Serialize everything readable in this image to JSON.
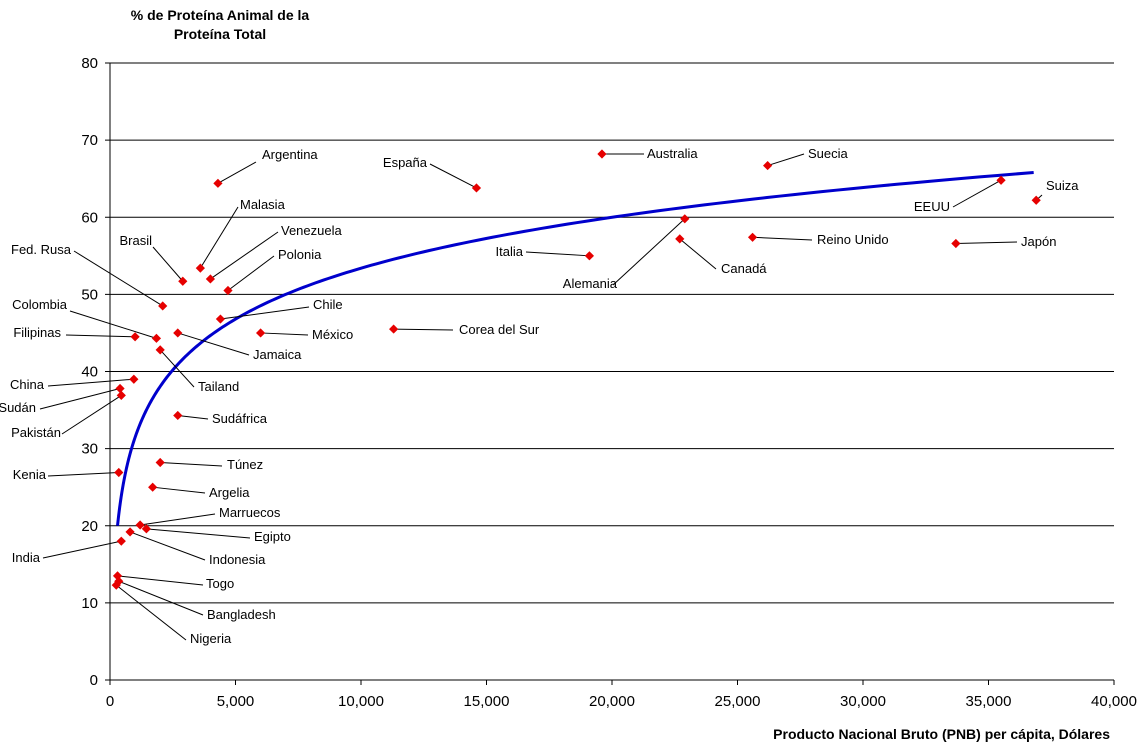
{
  "chart_data": {
    "type": "scatter",
    "title": "",
    "ylabel_lines": [
      "% de Proteína Animal de la",
      "Proteína Total"
    ],
    "xlabel": "Producto Nacional Bruto (PNB) per cápita, Dólares",
    "xlim": [
      0,
      40000
    ],
    "ylim": [
      0,
      80
    ],
    "x_ticks": [
      0,
      5000,
      10000,
      15000,
      20000,
      25000,
      30000,
      35000,
      40000
    ],
    "x_tick_labels": [
      "0",
      "5,000",
      "10,000",
      "15,000",
      "20,000",
      "25,000",
      "30,000",
      "35,000",
      "40,000"
    ],
    "y_ticks": [
      0,
      10,
      20,
      30,
      40,
      50,
      60,
      70,
      80
    ],
    "y_tick_labels": [
      "0",
      "10",
      "20",
      "30",
      "40",
      "50",
      "60",
      "70",
      "80"
    ],
    "grid": "horizontal",
    "colors": {
      "points": "#e60000",
      "trend": "#0000cc",
      "grid": "#000000"
    },
    "trendline": {
      "type": "logarithmic",
      "x_start": 300,
      "x_end": 36800,
      "y_start": 20,
      "y_end": 65.8
    },
    "points": [
      {
        "label": "Argentina",
        "x": 4300,
        "y": 64.4
      },
      {
        "label": "España",
        "x": 14600,
        "y": 63.8
      },
      {
        "label": "Australia",
        "x": 19600,
        "y": 68.2
      },
      {
        "label": "Suecia",
        "x": 26200,
        "y": 66.7
      },
      {
        "label": "EEUU",
        "x": 35500,
        "y": 64.8
      },
      {
        "label": "Suiza",
        "x": 36900,
        "y": 62.2
      },
      {
        "label": "Malasia",
        "x": 3600,
        "y": 53.4
      },
      {
        "label": "Venezuela",
        "x": 4000,
        "y": 52.0
      },
      {
        "label": "Brasil",
        "x": 2900,
        "y": 51.7
      },
      {
        "label": "Polonia",
        "x": 4700,
        "y": 50.5
      },
      {
        "label": "Fed. Rusa",
        "x": 2100,
        "y": 48.5
      },
      {
        "label": "Chile",
        "x": 4400,
        "y": 46.8
      },
      {
        "label": "Colombia",
        "x": 1850,
        "y": 44.3
      },
      {
        "label": "Jamaica",
        "x": 2700,
        "y": 45.0
      },
      {
        "label": "Filipinas",
        "x": 1000,
        "y": 44.5
      },
      {
        "label": "México",
        "x": 6000,
        "y": 45.0
      },
      {
        "label": "Corea del Sur",
        "x": 11300,
        "y": 45.5
      },
      {
        "label": "Tailand",
        "x": 2000,
        "y": 42.8
      },
      {
        "label": "Italia",
        "x": 19100,
        "y": 55.0
      },
      {
        "label": "Alemania",
        "x": 22900,
        "y": 59.8
      },
      {
        "label": "Canadá",
        "x": 22700,
        "y": 57.2
      },
      {
        "label": "Reino Unido",
        "x": 25600,
        "y": 57.4
      },
      {
        "label": "Japón",
        "x": 33700,
        "y": 56.6
      },
      {
        "label": "China",
        "x": 950,
        "y": 39.0
      },
      {
        "label": "Sudán",
        "x": 400,
        "y": 37.8
      },
      {
        "label": "Pakistán",
        "x": 450,
        "y": 36.9
      },
      {
        "label": "Sudáfrica",
        "x": 2700,
        "y": 34.3
      },
      {
        "label": "Túnez",
        "x": 2000,
        "y": 28.2
      },
      {
        "label": "Kenia",
        "x": 350,
        "y": 26.9
      },
      {
        "label": "Argelia",
        "x": 1700,
        "y": 25.0
      },
      {
        "label": "Marruecos",
        "x": 1200,
        "y": 20.1
      },
      {
        "label": "Egipto",
        "x": 1450,
        "y": 19.6
      },
      {
        "label": "Indonesia",
        "x": 800,
        "y": 19.2
      },
      {
        "label": "India",
        "x": 450,
        "y": 18.0
      },
      {
        "label": "Togo",
        "x": 300,
        "y": 13.5
      },
      {
        "label": "Bangladesh",
        "x": 350,
        "y": 12.8
      },
      {
        "label": "Nigeria",
        "x": 250,
        "y": 12.3
      }
    ]
  }
}
